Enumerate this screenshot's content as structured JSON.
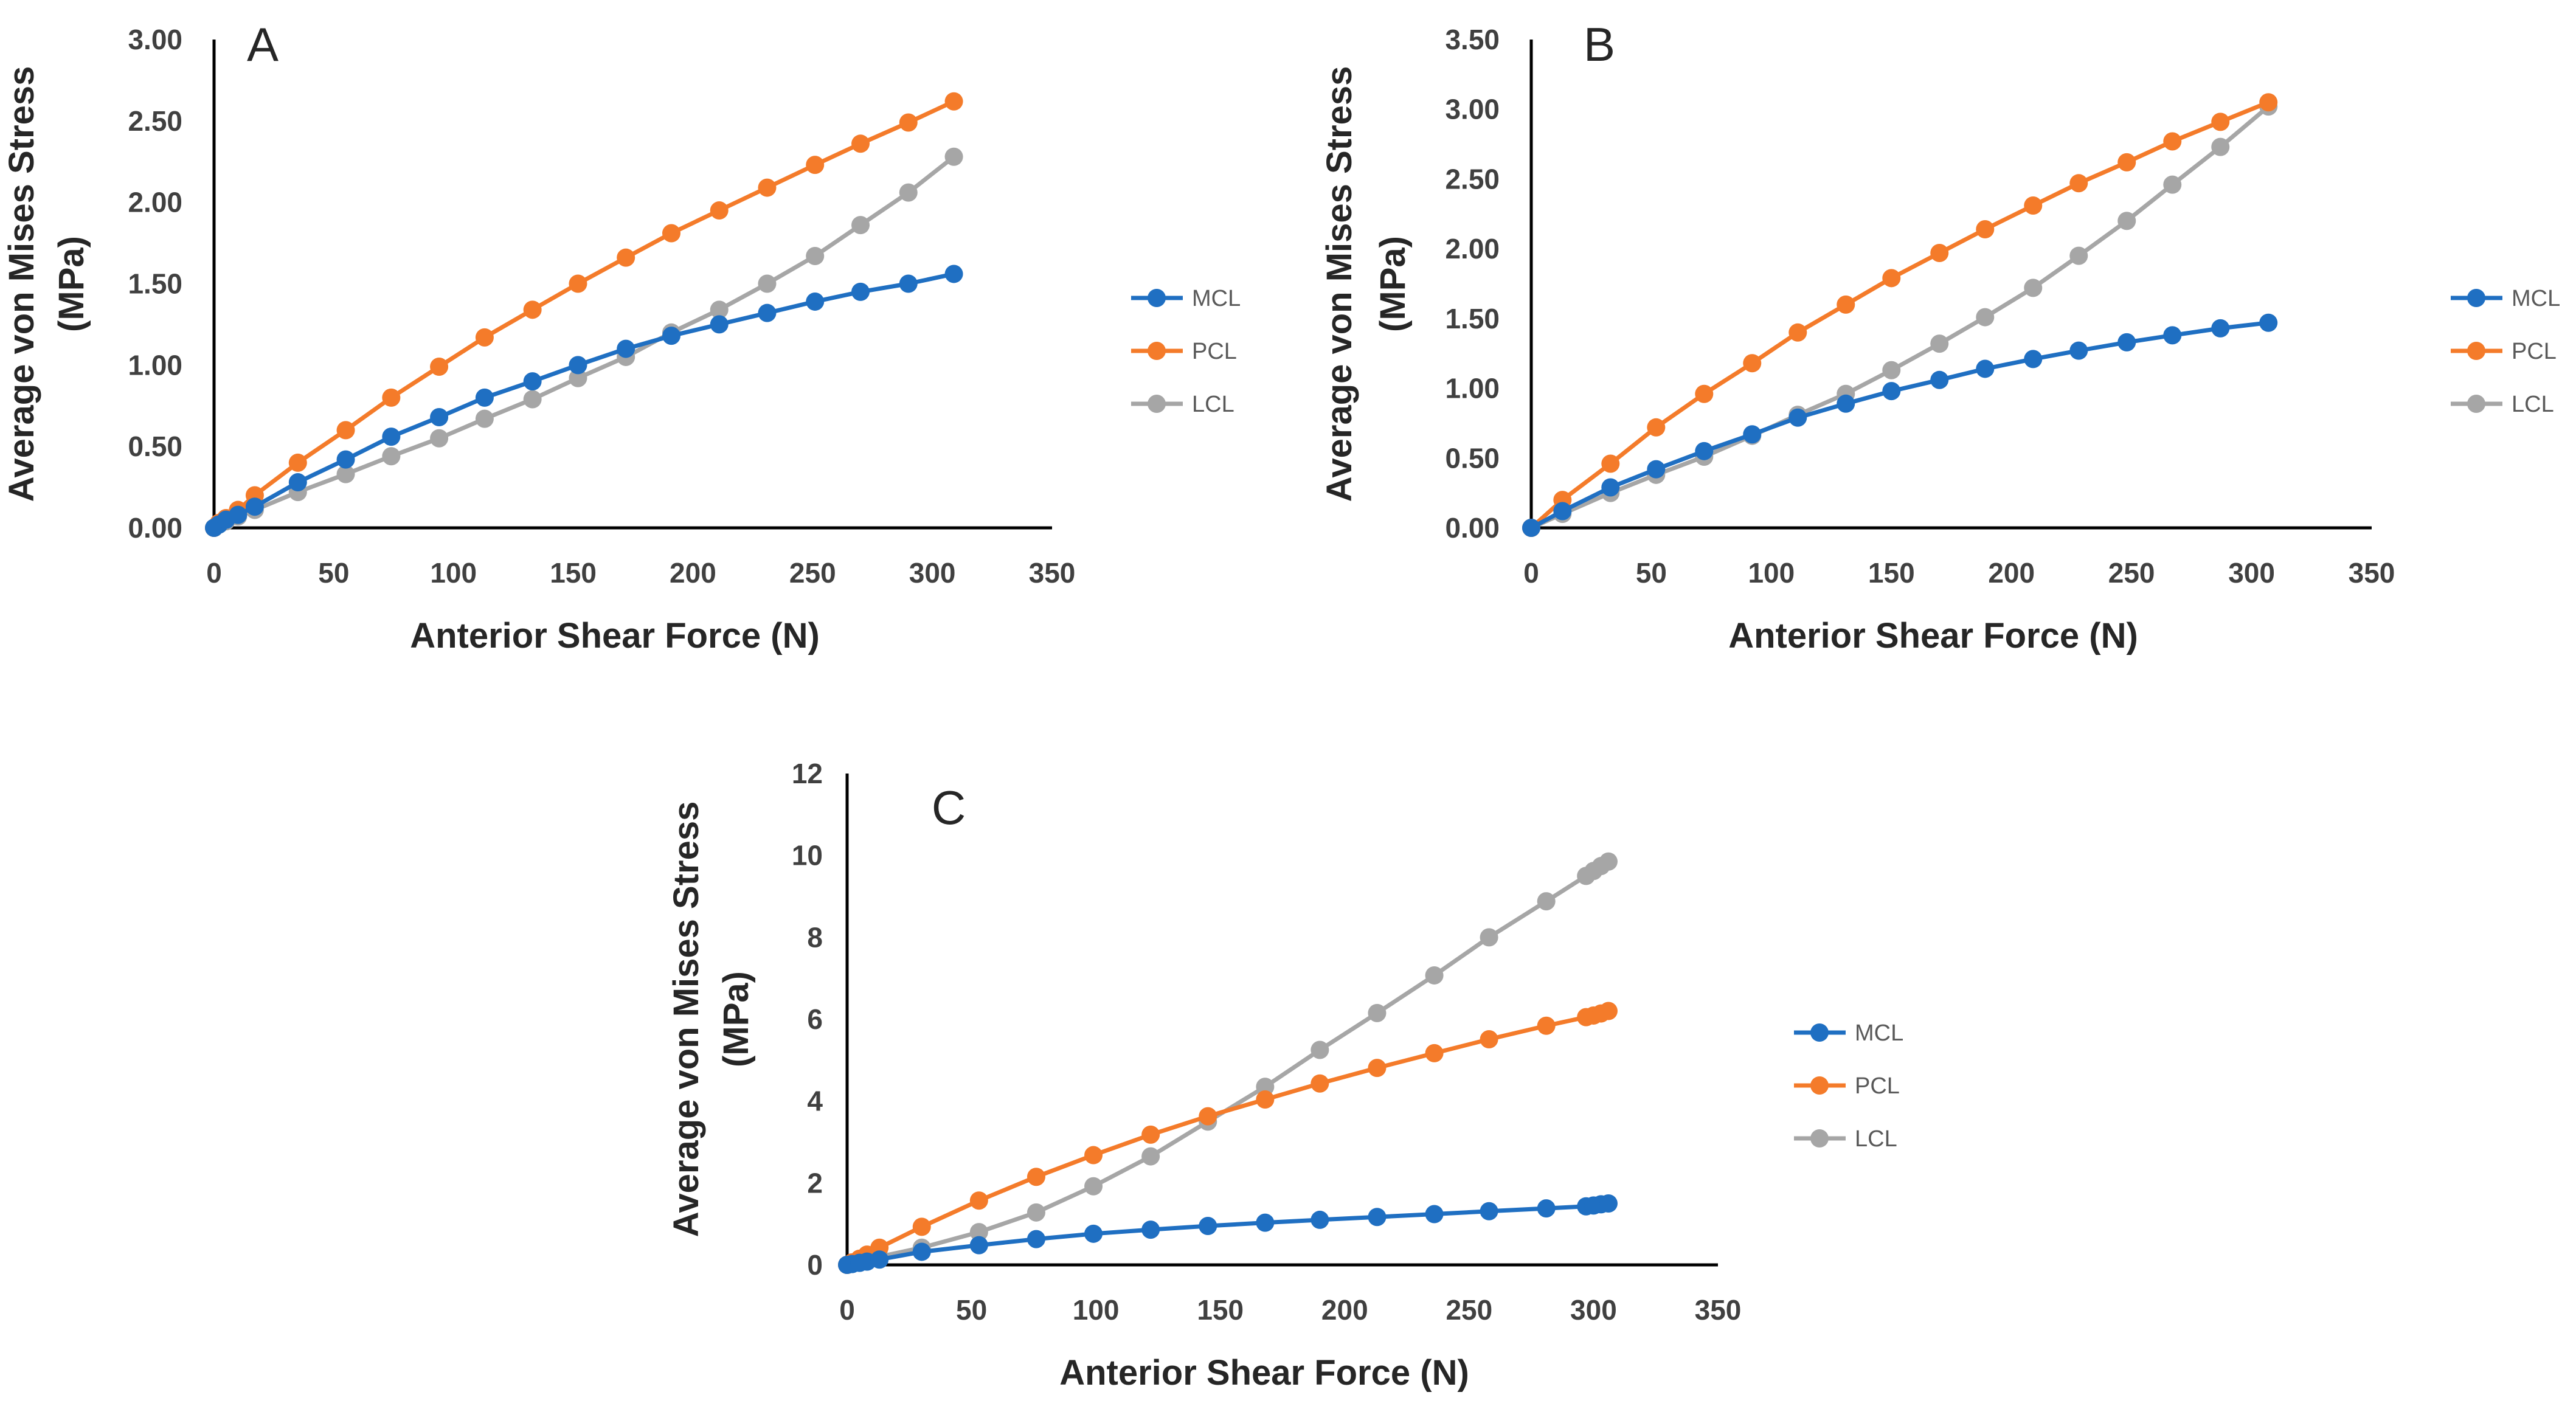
{
  "colors": {
    "MCL": "#1f6fc2",
    "PCL": "#f47b2a",
    "LCL": "#a6a6a6",
    "axis": "#000000"
  },
  "chart_data": [
    {
      "type": "line",
      "title": "A",
      "xlabel": "Anterior Shear Force (N)",
      "ylabel_lines": [
        "Average von Mises Stress",
        "(MPa)"
      ],
      "xlim": [
        0,
        350
      ],
      "ylim": [
        0,
        3
      ],
      "xticks": [
        "0",
        "50",
        "100",
        "150",
        "200",
        "250",
        "300",
        "350"
      ],
      "yticks": [
        "0.00",
        "0.50",
        "1.00",
        "1.50",
        "2.00",
        "2.50",
        "3.00"
      ],
      "legend": [
        "MCL",
        "PCL",
        "LCL"
      ],
      "series": [
        {
          "name": "MCL",
          "x": [
            0,
            2,
            5,
            10,
            17,
            35,
            55,
            74,
            94,
            113,
            133,
            152,
            172,
            191,
            211,
            231,
            251,
            270,
            290,
            309
          ],
          "y": [
            0,
            0.02,
            0.05,
            0.08,
            0.13,
            0.28,
            0.42,
            0.56,
            0.68,
            0.8,
            0.9,
            1.0,
            1.1,
            1.18,
            1.25,
            1.32,
            1.39,
            1.45,
            1.5,
            1.56
          ]
        },
        {
          "name": "PCL",
          "x": [
            0,
            2,
            5,
            10,
            17,
            35,
            55,
            74,
            94,
            113,
            133,
            152,
            172,
            191,
            211,
            231,
            251,
            270,
            290,
            309
          ],
          "y": [
            0,
            0.03,
            0.06,
            0.11,
            0.2,
            0.4,
            0.6,
            0.8,
            0.99,
            1.17,
            1.34,
            1.5,
            1.66,
            1.81,
            1.95,
            2.09,
            2.23,
            2.36,
            2.49,
            2.62
          ]
        },
        {
          "name": "LCL",
          "x": [
            0,
            2,
            5,
            10,
            17,
            35,
            55,
            74,
            94,
            113,
            133,
            152,
            172,
            191,
            211,
            231,
            251,
            270,
            290,
            309
          ],
          "y": [
            0,
            0.02,
            0.04,
            0.07,
            0.11,
            0.22,
            0.33,
            0.44,
            0.55,
            0.67,
            0.79,
            0.92,
            1.05,
            1.2,
            1.34,
            1.5,
            1.67,
            1.86,
            2.06,
            2.28
          ]
        }
      ]
    },
    {
      "type": "line",
      "title": "B",
      "xlabel": "Anterior Shear Force (N)",
      "ylabel_lines": [
        "Average von Mises Stress",
        "(MPa)"
      ],
      "xlim": [
        0,
        350
      ],
      "ylim": [
        0,
        3.5
      ],
      "xticks": [
        "0",
        "50",
        "100",
        "150",
        "200",
        "250",
        "300",
        "350"
      ],
      "yticks": [
        "0.00",
        "0.50",
        "1.00",
        "1.50",
        "2.00",
        "2.50",
        "3.00",
        "3.50"
      ],
      "legend": [
        "MCL",
        "PCL",
        "LCL"
      ],
      "series": [
        {
          "name": "MCL",
          "x": [
            0,
            13,
            33,
            52,
            72,
            92,
            111,
            131,
            150,
            170,
            189,
            209,
            228,
            248,
            267,
            287,
            307
          ],
          "y": [
            0,
            0.12,
            0.29,
            0.42,
            0.55,
            0.67,
            0.79,
            0.89,
            0.98,
            1.06,
            1.14,
            1.21,
            1.27,
            1.33,
            1.38,
            1.43,
            1.47
          ]
        },
        {
          "name": "PCL",
          "x": [
            0,
            13,
            33,
            52,
            72,
            92,
            111,
            131,
            150,
            170,
            189,
            209,
            228,
            248,
            267,
            287,
            307
          ],
          "y": [
            0,
            0.2,
            0.46,
            0.72,
            0.96,
            1.18,
            1.4,
            1.6,
            1.79,
            1.97,
            2.14,
            2.31,
            2.47,
            2.62,
            2.77,
            2.91,
            3.05
          ]
        },
        {
          "name": "LCL",
          "x": [
            0,
            13,
            33,
            52,
            72,
            92,
            111,
            131,
            150,
            170,
            189,
            209,
            228,
            248,
            267,
            287,
            307
          ],
          "y": [
            0,
            0.1,
            0.25,
            0.38,
            0.51,
            0.66,
            0.81,
            0.96,
            1.13,
            1.32,
            1.51,
            1.72,
            1.95,
            2.2,
            2.46,
            2.73,
            3.02
          ]
        }
      ]
    },
    {
      "type": "line",
      "title": "C",
      "xlabel": "Anterior Shear Force (N)",
      "ylabel_lines": [
        "Average von Mises Stress",
        "(MPa)"
      ],
      "xlim": [
        0,
        350
      ],
      "ylim": [
        0,
        12
      ],
      "xticks": [
        "0",
        "50",
        "100",
        "150",
        "200",
        "250",
        "300",
        "350"
      ],
      "yticks": [
        "0",
        "2",
        "4",
        "6",
        "8",
        "10",
        "12"
      ],
      "legend": [
        "MCL",
        "PCL",
        "LCL"
      ],
      "series": [
        {
          "name": "MCL",
          "x": [
            0,
            2,
            5,
            8,
            13,
            30,
            53,
            76,
            99,
            122,
            145,
            168,
            190,
            213,
            236,
            258,
            281,
            297,
            300,
            303,
            306
          ],
          "y": [
            0,
            0.02,
            0.05,
            0.08,
            0.13,
            0.32,
            0.48,
            0.63,
            0.76,
            0.86,
            0.95,
            1.03,
            1.1,
            1.17,
            1.24,
            1.31,
            1.38,
            1.43,
            1.45,
            1.48,
            1.5
          ]
        },
        {
          "name": "PCL",
          "x": [
            0,
            2,
            5,
            8,
            13,
            30,
            53,
            76,
            99,
            122,
            145,
            168,
            190,
            213,
            236,
            258,
            281,
            297,
            300,
            303,
            306
          ],
          "y": [
            0,
            0.06,
            0.15,
            0.25,
            0.42,
            0.93,
            1.57,
            2.15,
            2.68,
            3.18,
            3.63,
            4.04,
            4.43,
            4.81,
            5.17,
            5.51,
            5.84,
            6.05,
            6.09,
            6.14,
            6.2
          ]
        },
        {
          "name": "LCL",
          "x": [
            0,
            2,
            5,
            8,
            13,
            30,
            53,
            76,
            99,
            122,
            145,
            168,
            190,
            213,
            236,
            258,
            281,
            297,
            300,
            303,
            306
          ],
          "y": [
            0,
            0.03,
            0.07,
            0.12,
            0.2,
            0.42,
            0.8,
            1.28,
            1.92,
            2.65,
            3.5,
            4.35,
            5.25,
            6.15,
            7.07,
            8.0,
            8.88,
            9.5,
            9.62,
            9.74,
            9.85
          ]
        }
      ]
    }
  ]
}
